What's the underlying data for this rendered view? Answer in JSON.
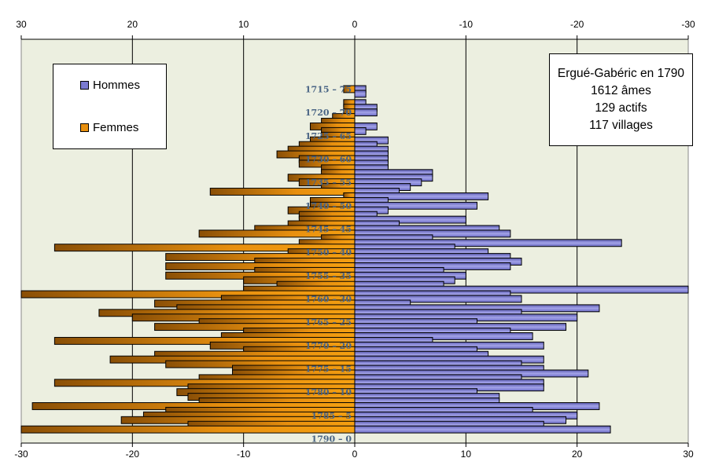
{
  "chart_data": {
    "type": "bar",
    "subtype": "population-pyramid",
    "orientation": "horizontal",
    "title": "",
    "xlabel": "",
    "ylabel": "",
    "top_axis_ticks": [
      "30",
      "20",
      "10",
      "0",
      "-10",
      "-20",
      "-30"
    ],
    "bottom_axis_ticks": [
      "-30",
      "-20",
      "-10",
      "0",
      "10",
      "20",
      "30"
    ],
    "xlim": [
      -30,
      30
    ],
    "grid": true,
    "legend": {
      "position": "top-left",
      "entries": [
        {
          "name": "Hommes",
          "color": "#7b7bd1"
        },
        {
          "name": "Femmes",
          "color": "#e8900f"
        }
      ]
    },
    "age_labels": [
      {
        "label": "1715 – 75",
        "age": 75
      },
      {
        "label": "1720 – 70",
        "age": 70
      },
      {
        "label": "1725 – 65",
        "age": 65
      },
      {
        "label": "1730 – 60",
        "age": 60
      },
      {
        "label": "1735 – 55",
        "age": 55
      },
      {
        "label": "1740 – 50",
        "age": 50
      },
      {
        "label": "1745 – 45",
        "age": 45
      },
      {
        "label": "1750 – 40",
        "age": 40
      },
      {
        "label": "1755 – 35",
        "age": 35
      },
      {
        "label": "1760 – 30",
        "age": 30
      },
      {
        "label": "1765 – 25",
        "age": 25
      },
      {
        "label": "1770 – 20",
        "age": 20
      },
      {
        "label": "1775 – 15",
        "age": 15
      },
      {
        "label": "1780 – 10",
        "age": 10
      },
      {
        "label": "1785 – 5",
        "age": 5
      },
      {
        "label": "1790 – 0",
        "age": 0
      }
    ],
    "ages": [
      75,
      74,
      73,
      72,
      71,
      70,
      69,
      68,
      67,
      66,
      65,
      64,
      63,
      62,
      61,
      60,
      59,
      58,
      57,
      56,
      55,
      54,
      53,
      52,
      51,
      50,
      49,
      48,
      47,
      46,
      45,
      44,
      43,
      42,
      41,
      40,
      39,
      38,
      37,
      36,
      35,
      34,
      33,
      32,
      31,
      30,
      29,
      28,
      27,
      26,
      25,
      24,
      23,
      22,
      21,
      20,
      19,
      18,
      17,
      16,
      15,
      14,
      13,
      12,
      11,
      10,
      9,
      8,
      7,
      6,
      5,
      4,
      3,
      2,
      1,
      0
    ],
    "series": [
      {
        "name": "Hommes",
        "side": "right",
        "color": "#7b7bd1",
        "values": [
          1,
          1,
          0,
          1,
          2,
          2,
          0,
          0,
          2,
          1,
          0,
          3,
          2,
          3,
          3,
          3,
          3,
          3,
          7,
          7,
          6,
          5,
          4,
          12,
          3,
          11,
          3,
          2,
          10,
          4,
          13,
          14,
          7,
          24,
          9,
          12,
          14,
          15,
          14,
          8,
          10,
          9,
          8,
          30,
          14,
          15,
          5,
          22,
          15,
          20,
          11,
          19,
          14,
          16,
          7,
          17,
          11,
          12,
          17,
          15,
          17,
          21,
          15,
          17,
          17,
          11,
          13,
          13,
          22,
          16,
          20,
          19,
          17,
          23,
          0,
          0
        ]
      },
      {
        "name": "Femmes",
        "side": "left",
        "color": "#e8900f",
        "values": [
          1,
          0,
          0,
          1,
          1,
          1,
          2,
          3,
          4,
          3,
          3,
          4,
          5,
          6,
          7,
          5,
          5,
          3,
          3,
          6,
          5,
          3,
          13,
          1,
          4,
          4,
          6,
          5,
          5,
          6,
          9,
          14,
          3,
          5,
          27,
          6,
          17,
          9,
          17,
          9,
          17,
          10,
          7,
          10,
          30,
          12,
          18,
          16,
          23,
          20,
          14,
          18,
          10,
          12,
          27,
          13,
          10,
          18,
          22,
          17,
          11,
          11,
          14,
          27,
          15,
          16,
          15,
          14,
          29,
          17,
          19,
          21,
          15,
          30,
          0,
          0
        ]
      }
    ]
  },
  "legend_box": {
    "hommes": "Hommes",
    "femmes": "Femmes"
  },
  "info_box": {
    "line1": "Ergué-Gabéric en 1790",
    "line2": "1612 âmes",
    "line3": "129 actifs",
    "line4": "117 villages"
  }
}
